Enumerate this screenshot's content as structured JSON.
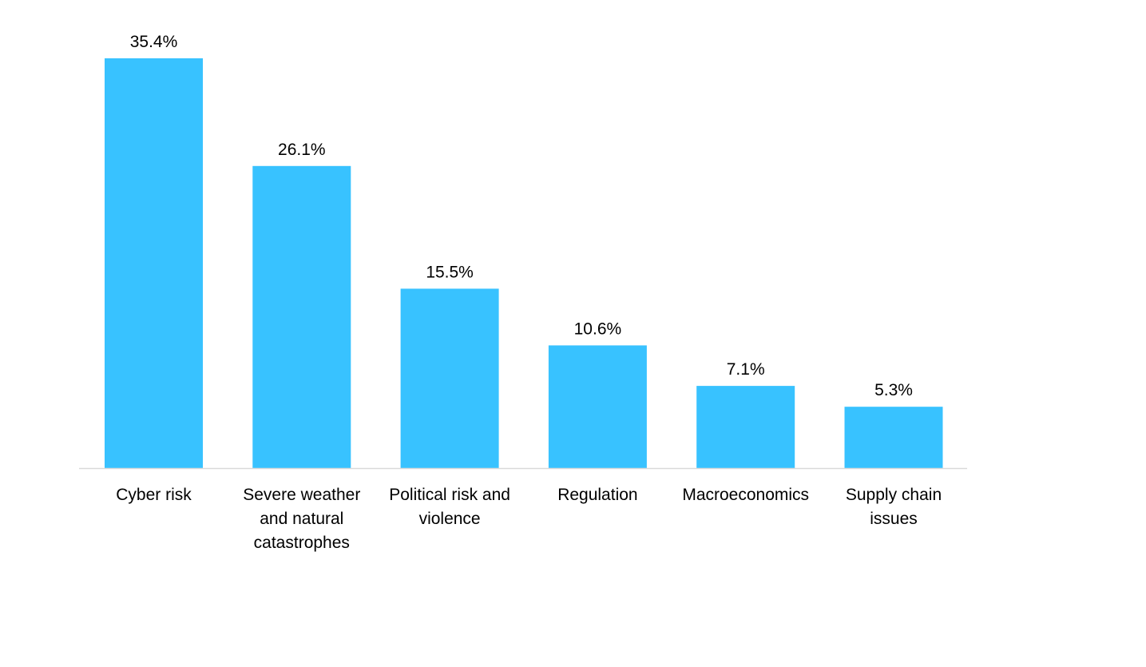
{
  "chart_data": {
    "type": "bar",
    "title": "",
    "xlabel": "",
    "ylabel": "",
    "categories": [
      [
        "Cyber risk"
      ],
      [
        "Severe weather",
        "and natural",
        "catastrophes"
      ],
      [
        "Political risk and",
        "violence"
      ],
      [
        "Regulation"
      ],
      [
        "Macroeconomics"
      ],
      [
        "Supply chain",
        "issues"
      ]
    ],
    "values": [
      35.4,
      26.1,
      15.5,
      10.6,
      7.1,
      5.3
    ],
    "value_labels": [
      "35.4%",
      "26.1%",
      "15.5%",
      "10.6%",
      "7.1%",
      "5.3%"
    ],
    "bar_color": "#38C2FF",
    "axis_color": "#D9D9D9",
    "grid": false,
    "legend": "none"
  }
}
